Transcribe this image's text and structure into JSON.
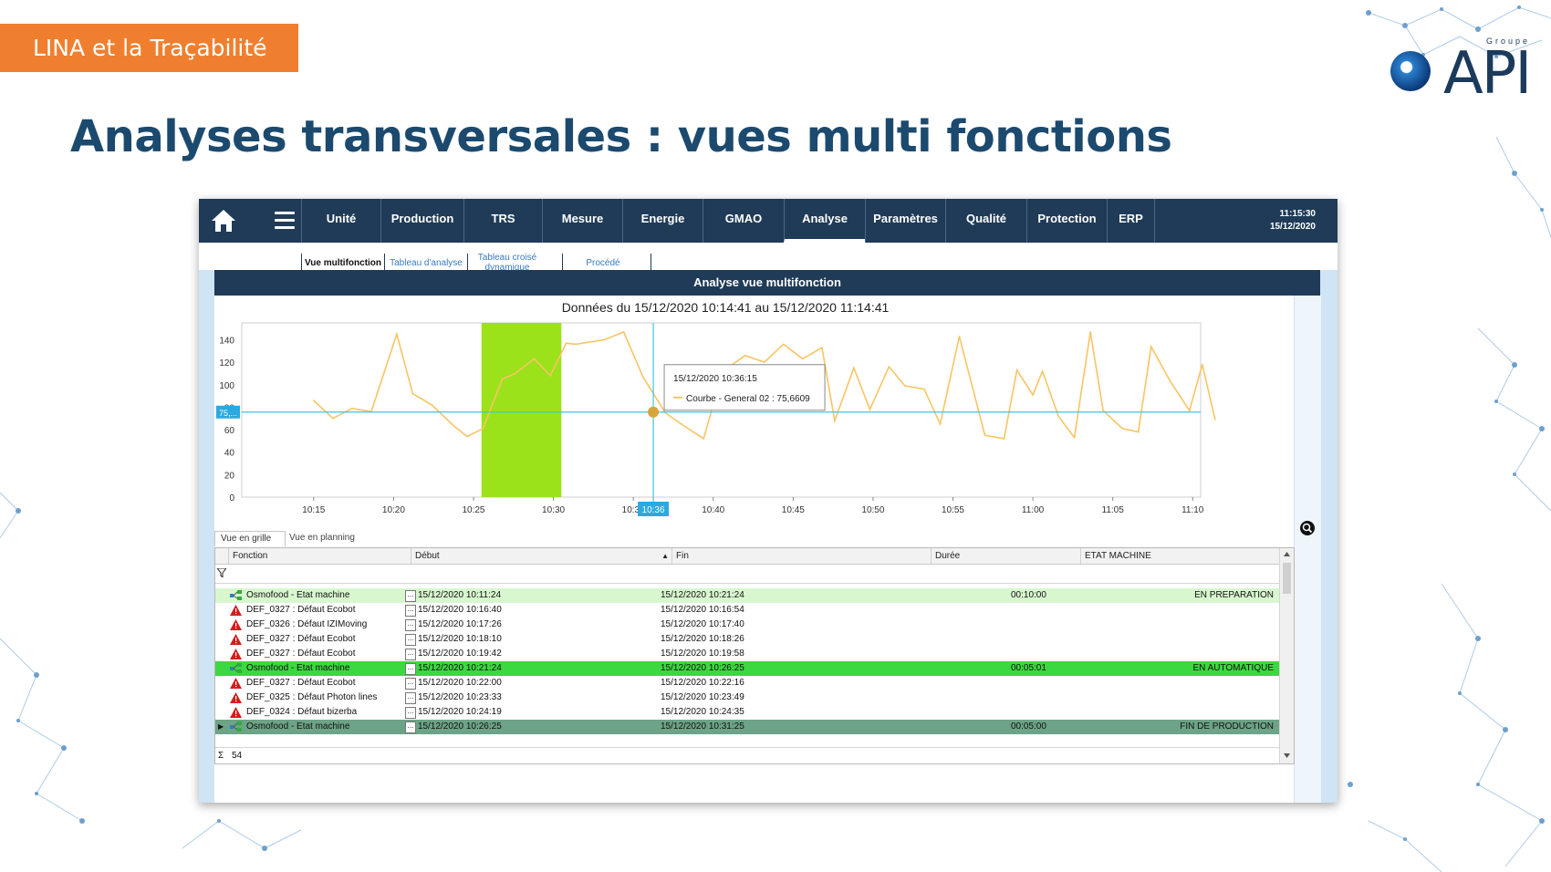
{
  "slide": {
    "tag": "LINA et la Traçabilité",
    "title": "Analyses transversales : vues multi fonctions",
    "logo": {
      "groupe": "Groupe",
      "name": "API"
    }
  },
  "topbar": {
    "tabs": [
      "Unité",
      "Production",
      "TRS",
      "Mesure",
      "Energie",
      "GMAO",
      "Analyse",
      "Paramètres",
      "Qualité",
      "Protection",
      "ERP"
    ],
    "active_tab": "Analyse",
    "clock_time": "11:15:30",
    "clock_date": "15/12/2020"
  },
  "subtabs": [
    "Vue multifonction",
    "Tableau d'analyse",
    "Tableau croisé dynamique",
    "Procédé"
  ],
  "panel": {
    "header": "Analyse vue multifonction",
    "chart_title": "Données du 15/12/2020 10:14:41 au 15/12/2020 11:14:41"
  },
  "chart_data": {
    "type": "line",
    "title": "Données du 15/12/2020 10:14:41 au 15/12/2020 11:14:41",
    "ylim": [
      0,
      155
    ],
    "yticks": [
      0,
      20,
      40,
      60,
      80,
      100,
      120,
      140
    ],
    "xlim": [
      10.5,
      70.5
    ],
    "xticks": [
      15,
      20,
      25,
      30,
      35,
      40,
      45,
      50,
      55,
      60,
      65,
      70
    ],
    "xtick_labels": [
      "10:15",
      "10:20",
      "10:25",
      "10:30",
      "10:35",
      "10:40",
      "10:45",
      "10:50",
      "10:55",
      "11:00",
      "11:05",
      "11:10"
    ],
    "series": [
      {
        "name": "Courbe - General 02",
        "color": "#f9c463",
        "x": [
          15.0,
          16.2,
          17.4,
          18.6,
          20.2,
          21.2,
          22.4,
          23.8,
          24.6,
          25.6,
          26.8,
          27.6,
          28.8,
          29.8,
          30.8,
          31.4,
          33.2,
          34.4,
          35.6,
          37.0,
          38.0,
          39.4,
          40.6,
          42.0,
          43.2,
          44.4,
          45.6,
          46.8,
          47.6,
          48.8,
          49.8,
          51.0,
          52.0,
          53.2,
          54.2,
          55.4,
          57.0,
          58.2,
          59.0,
          60.0,
          60.6,
          61.6,
          62.6,
          63.6,
          64.4,
          65.6,
          66.6,
          67.4,
          68.6,
          69.8,
          70.6,
          71.4
        ],
        "y": [
          86,
          70,
          79,
          76,
          145,
          92,
          82,
          63,
          54,
          61,
          105,
          110,
          123,
          108,
          137,
          136,
          140,
          147,
          107,
          75,
          65,
          52,
          112,
          126,
          120,
          136,
          123,
          133,
          68,
          115,
          78,
          116,
          99,
          96,
          65,
          143,
          55,
          52,
          113,
          91,
          112,
          72,
          53,
          147,
          77,
          61,
          58,
          134,
          103,
          77,
          118,
          69
        ],
        "cursor": {
          "label": "10:36",
          "tooltip_date": "15/12/2020 10:36:15",
          "tooltip_text": "Courbe - General 02 : 75,6609",
          "value": 75.6609,
          "y_marker": "75,..."
        },
        "highlight": {
          "from": 25.5,
          "to": 30.5,
          "color": "#9be21b"
        }
      }
    ]
  },
  "grid": {
    "tabs": [
      "Vue en grille",
      "Vue en planning"
    ],
    "columns": [
      "Fonction",
      "Début",
      "Fin",
      "Durée",
      "ETAT MACHINE"
    ],
    "rows": [
      {
        "icon": "machine",
        "fonction": "Osmofood - Etat machine",
        "debut": "15/12/2020 10:11:24",
        "fin": "15/12/2020 10:21:24",
        "duree": "00:10:00",
        "etat": "EN PREPARATION",
        "style": "green"
      },
      {
        "icon": "warning",
        "fonction": "DEF_0327 : Défaut Ecobot",
        "debut": "15/12/2020 10:16:40",
        "fin": "15/12/2020 10:16:54",
        "duree": "",
        "etat": "",
        "style": ""
      },
      {
        "icon": "warning",
        "fonction": "DEF_0326 : Défaut IZIMoving",
        "debut": "15/12/2020 10:17:26",
        "fin": "15/12/2020 10:17:40",
        "duree": "",
        "etat": "",
        "style": ""
      },
      {
        "icon": "warning",
        "fonction": "DEF_0327 : Défaut Ecobot",
        "debut": "15/12/2020 10:18:10",
        "fin": "15/12/2020 10:18:26",
        "duree": "",
        "etat": "",
        "style": ""
      },
      {
        "icon": "warning",
        "fonction": "DEF_0327 : Défaut Ecobot",
        "debut": "15/12/2020 10:19:42",
        "fin": "15/12/2020 10:19:58",
        "duree": "",
        "etat": "",
        "style": ""
      },
      {
        "icon": "machine",
        "fonction": "Osmofood - Etat machine",
        "debut": "15/12/2020 10:21:24",
        "fin": "15/12/2020 10:26:25",
        "duree": "00:05:01",
        "etat": "EN AUTOMATIQUE",
        "style": "bright"
      },
      {
        "icon": "warning",
        "fonction": "DEF_0327 : Défaut Ecobot",
        "debut": "15/12/2020 10:22:00",
        "fin": "15/12/2020 10:22:16",
        "duree": "",
        "etat": "",
        "style": ""
      },
      {
        "icon": "warning",
        "fonction": "DEF_0325 : Défaut Photon lines",
        "debut": "15/12/2020 10:23:33",
        "fin": "15/12/2020 10:23:49",
        "duree": "",
        "etat": "",
        "style": ""
      },
      {
        "icon": "warning",
        "fonction": "DEF_0324 : Défaut bizerba",
        "debut": "15/12/2020 10:24:19",
        "fin": "15/12/2020 10:24:35",
        "duree": "",
        "etat": "",
        "style": ""
      },
      {
        "icon": "machine",
        "fonction": "Osmofood - Etat machine",
        "debut": "15/12/2020 10:26:25",
        "fin": "15/12/2020 10:31:25",
        "duree": "00:05:00",
        "etat": "FIN DE PRODUCTION",
        "style": "dark",
        "selected": true
      }
    ],
    "footer_sum_symbol": "Σ",
    "footer_count": "54"
  }
}
